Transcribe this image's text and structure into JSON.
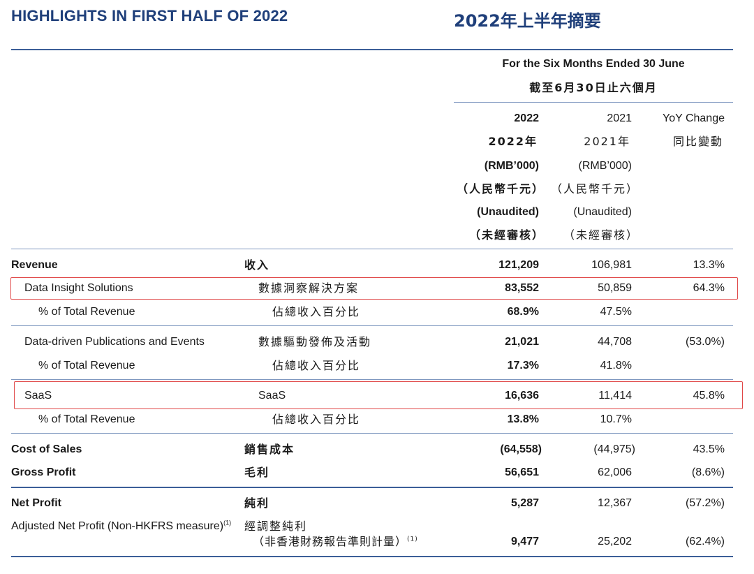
{
  "title_en": "HIGHLIGHTS IN FIRST HALF OF 2022",
  "title_zh": "2022年上半年摘要",
  "period_en": "For the Six Months Ended 30 June",
  "period_zh": "截至6月30日止六個月",
  "columns": {
    "c2022": {
      "year": "2022",
      "year_zh": "2022年",
      "unit": "(RMB’000)",
      "unit_zh": "（人民幣千元）",
      "audit": "(Unaudited)",
      "audit_zh": "（未經審核）"
    },
    "c2021": {
      "year": "2021",
      "year_zh": "2021年",
      "unit": "(RMB’000)",
      "unit_zh": "（人民幣千元）",
      "audit": "(Unaudited)",
      "audit_zh": "（未經審核）"
    },
    "yoy": {
      "label": "YoY Change",
      "label_zh": "同比變動"
    }
  },
  "rows": {
    "revenue": {
      "en": "Revenue",
      "zh": "收入",
      "v2022": "121,209",
      "v2021": "106,981",
      "yoy": "13.3%"
    },
    "dis": {
      "en": "Data Insight Solutions",
      "zh": "數據洞察解決方案",
      "v2022": "83,552",
      "v2021": "50,859",
      "yoy": "64.3%"
    },
    "dis_pct": {
      "en": "% of Total Revenue",
      "zh": "佔總收入百分比",
      "v2022": "68.9%",
      "v2021": "47.5%"
    },
    "dpe": {
      "en": "Data-driven Publications and Events",
      "zh": "數據驅動發佈及活動",
      "v2022": "21,021",
      "v2021": "44,708",
      "yoy": "(53.0%)"
    },
    "dpe_pct": {
      "en": "% of Total Revenue",
      "zh": "佔總收入百分比",
      "v2022": "17.3%",
      "v2021": "41.8%"
    },
    "saas": {
      "en": "SaaS",
      "zh": "SaaS",
      "v2022": "16,636",
      "v2021": "11,414",
      "yoy": "45.8%"
    },
    "saas_pct": {
      "en": "% of Total Revenue",
      "zh": "佔總收入百分比",
      "v2022": "13.8%",
      "v2021": "10.7%"
    },
    "cos": {
      "en": "Cost of Sales",
      "zh": "銷售成本",
      "v2022": "(64,558)",
      "v2021": "(44,975)",
      "yoy": "43.5%"
    },
    "gp": {
      "en": "Gross Profit",
      "zh": "毛利",
      "v2022": "56,651",
      "v2021": "62,006",
      "yoy": "(8.6%)"
    },
    "np": {
      "en": "Net Profit",
      "zh": "純利",
      "v2022": "5,287",
      "v2021": "12,367",
      "yoy": "(57.2%)"
    },
    "anp": {
      "en": "Adjusted Net Profit (Non-HKFRS measure)",
      "note": "(1)",
      "zh": "經調整純利",
      "zh2": "（非香港財務報告準則計量）",
      "note2": "(1)",
      "v2022": "9,477",
      "v2021": "25,202",
      "yoy": "(62.4%)"
    }
  }
}
